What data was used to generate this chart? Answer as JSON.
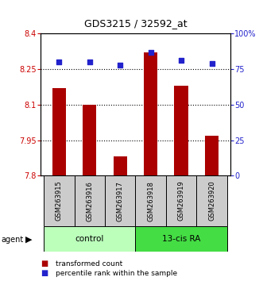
{
  "title": "GDS3215 / 32592_at",
  "samples": [
    "GSM263915",
    "GSM263916",
    "GSM263917",
    "GSM263918",
    "GSM263919",
    "GSM263920"
  ],
  "bar_values": [
    8.17,
    8.1,
    7.88,
    8.32,
    8.18,
    7.97
  ],
  "percentile_values": [
    80,
    80,
    78,
    87,
    81,
    79
  ],
  "ymin": 7.8,
  "ymax": 8.4,
  "yticks": [
    7.8,
    7.95,
    8.1,
    8.25,
    8.4
  ],
  "ytick_labels": [
    "7.8",
    "7.95",
    "8.1",
    "8.25",
    "8.4"
  ],
  "right_yticks": [
    0,
    25,
    50,
    75,
    100
  ],
  "right_ytick_labels": [
    "0",
    "25",
    "50",
    "75",
    "100%"
  ],
  "bar_color": "#aa0000",
  "dot_color": "#2222cc",
  "left_tick_color": "#cc0000",
  "right_tick_color": "#2222cc",
  "group_boundaries": [
    [
      -0.5,
      2.5,
      "control",
      "#bbffbb"
    ],
    [
      2.5,
      5.5,
      "13-cis RA",
      "#44dd44"
    ]
  ],
  "agent_label": "agent",
  "legend_bar_label": "transformed count",
  "legend_dot_label": "percentile rank within the sample",
  "grid_color": "#000000",
  "sample_box_color": "#cccccc",
  "bar_width": 0.45,
  "title_fontsize": 9,
  "axis_fontsize": 7,
  "label_fontsize": 6,
  "group_fontsize": 7.5,
  "legend_fontsize": 6.5
}
